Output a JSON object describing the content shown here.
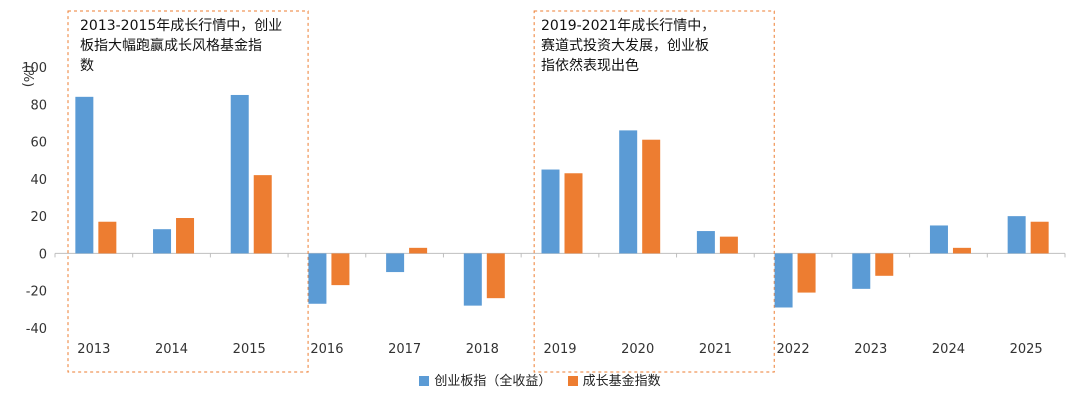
{
  "chart_data": {
    "type": "bar",
    "unit_label": "(%)",
    "categories": [
      "2013",
      "2014",
      "2015",
      "2016",
      "2017",
      "2018",
      "2019",
      "2020",
      "2021",
      "2022",
      "2023",
      "2024",
      "2025"
    ],
    "series": [
      {
        "name": "创业板指（全收益）",
        "color": "#5B9BD5",
        "values": [
          84,
          13,
          85,
          -27,
          -10,
          -28,
          45,
          66,
          12,
          -29,
          -19,
          15,
          20
        ]
      },
      {
        "name": "成长基金指数",
        "color": "#ED7D31",
        "values": [
          17,
          19,
          42,
          -17,
          3,
          -24,
          43,
          61,
          9,
          -21,
          -12,
          3,
          17
        ]
      }
    ],
    "ylim": [
      -40,
      100
    ],
    "yticks": [
      -40,
      -20,
      0,
      20,
      40,
      60,
      80,
      100
    ],
    "highlight_boxes": [
      {
        "from": "2013",
        "to": "2015",
        "text": "2013-2015年成长行情中，创业板指大幅跑赢成长风格基金指数",
        "border_color": "#ED7D31"
      },
      {
        "from": "2019",
        "to": "2021",
        "text": "2019-2021年成长行情中，赛道式投资大发展，创业板指依然表现出色",
        "border_color": "#ED7D31"
      }
    ],
    "legend_position": "bottom"
  },
  "annotations": {
    "box1_text": "2013-2015年成长行情中，创业\n板指大幅跑赢成长风格基金指\n数",
    "box2_text": "2019-2021年成长行情中，\n赛道式投资大发展，创业板\n指依然表现出色"
  },
  "legend": {
    "series1_label": "创业板指（全收益）",
    "series2_label": "成长基金指数"
  }
}
